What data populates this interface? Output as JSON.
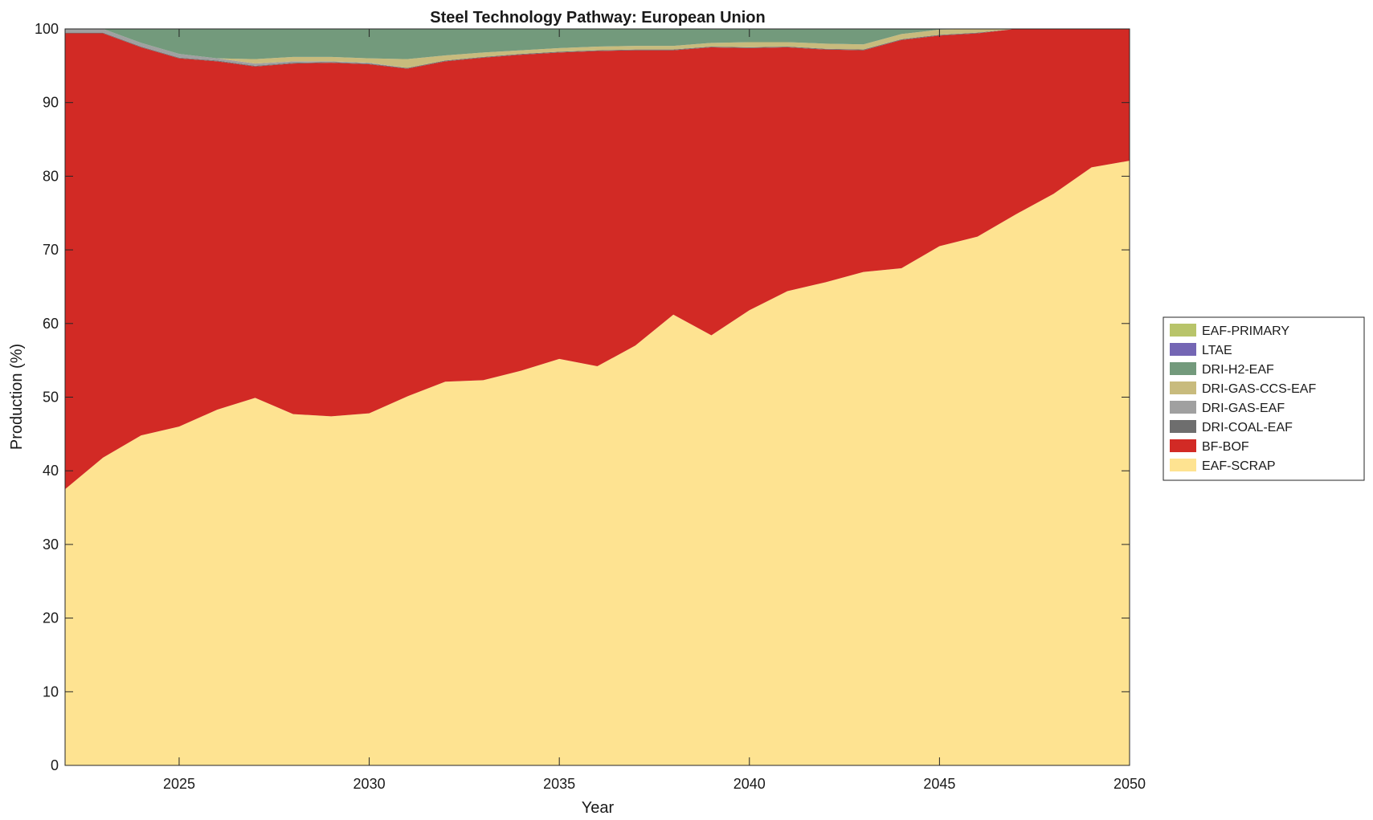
{
  "chart_data": {
    "type": "area",
    "stacked": true,
    "title": "Steel Technology Pathway: European Union",
    "xlabel": "Year",
    "ylabel": "Production (%)",
    "xlim": [
      2022,
      2050
    ],
    "ylim": [
      0,
      100
    ],
    "xticks": [
      2025,
      2030,
      2035,
      2040,
      2045,
      2050
    ],
    "yticks": [
      0,
      10,
      20,
      30,
      40,
      50,
      60,
      70,
      80,
      90,
      100
    ],
    "grid": false,
    "legend_position": "right",
    "x": [
      2022,
      2023,
      2024,
      2025,
      2026,
      2027,
      2028,
      2029,
      2030,
      2031,
      2032,
      2033,
      2034,
      2035,
      2036,
      2037,
      2038,
      2039,
      2040,
      2041,
      2042,
      2043,
      2044,
      2045,
      2046,
      2047,
      2048,
      2049,
      2050
    ],
    "series": [
      {
        "name": "EAF-SCRAP",
        "color": "#fee391",
        "values": [
          37.5,
          41.8,
          44.8,
          46.0,
          48.3,
          49.9,
          47.7,
          47.4,
          47.8,
          50.1,
          52.1,
          52.3,
          53.6,
          55.2,
          54.2,
          57.0,
          61.2,
          58.4,
          61.8,
          64.4,
          65.6,
          67.0,
          67.5,
          70.5,
          71.8,
          74.8,
          77.6,
          81.2,
          82.1
        ]
      },
      {
        "name": "BF-BOF",
        "color": "#d22a25",
        "values": [
          61.9,
          57.6,
          52.7,
          50.0,
          47.3,
          45.0,
          47.6,
          48.0,
          47.4,
          44.5,
          43.5,
          43.8,
          42.9,
          41.6,
          42.8,
          40.1,
          35.9,
          39.1,
          35.6,
          33.1,
          31.6,
          30.1,
          31.0,
          28.6,
          27.6,
          25.2,
          22.4,
          18.8,
          17.9
        ]
      },
      {
        "name": "DRI-COAL-EAF",
        "color": "#6e6e6e",
        "values": [
          0.1,
          0.1,
          0.1,
          0.1,
          0.1,
          0.1,
          0.1,
          0.1,
          0.1,
          0.1,
          0.1,
          0.1,
          0.1,
          0.1,
          0.1,
          0.1,
          0.1,
          0.1,
          0.1,
          0.1,
          0.1,
          0.1,
          0.1,
          0.1,
          0.1,
          0.0,
          0.0,
          0.0,
          0.0
        ]
      },
      {
        "name": "DRI-GAS-EAF",
        "color": "#a0a0a0",
        "values": [
          0.5,
          0.5,
          0.5,
          0.5,
          0.3,
          0.3,
          0.2,
          0.1,
          0.1,
          0.0,
          0.0,
          0.0,
          0.0,
          0.0,
          0.0,
          0.0,
          0.0,
          0.0,
          0.0,
          0.0,
          0.0,
          0.0,
          0.0,
          0.0,
          0.0,
          0.0,
          0.0,
          0.0,
          0.0
        ]
      },
      {
        "name": "DRI-GAS-CCS-EAF",
        "color": "#c8bb7d",
        "values": [
          0.0,
          0.0,
          0.0,
          0.0,
          0.0,
          0.6,
          0.6,
          0.6,
          0.6,
          1.2,
          0.7,
          0.6,
          0.5,
          0.5,
          0.5,
          0.5,
          0.5,
          0.5,
          0.7,
          0.6,
          0.7,
          0.7,
          0.7,
          0.7,
          0.5,
          0.0,
          0.0,
          0.0,
          0.0
        ]
      },
      {
        "name": "DRI-H2-EAF",
        "color": "#739a7c",
        "values": [
          0.0,
          0.0,
          1.9,
          3.4,
          4.0,
          4.1,
          3.8,
          3.8,
          4.0,
          4.1,
          3.6,
          3.2,
          2.9,
          2.6,
          2.4,
          2.3,
          2.3,
          1.9,
          1.8,
          1.8,
          2.0,
          2.1,
          0.7,
          0.1,
          0.0,
          0.0,
          0.0,
          0.0,
          0.0
        ]
      },
      {
        "name": "LTAE",
        "color": "#7466b4",
        "values": [
          0,
          0,
          0,
          0,
          0,
          0,
          0,
          0,
          0,
          0,
          0,
          0,
          0,
          0,
          0,
          0,
          0,
          0,
          0,
          0,
          0,
          0,
          0,
          0,
          0,
          0,
          0,
          0,
          0
        ]
      },
      {
        "name": "EAF-PRIMARY",
        "color": "#b8c46a",
        "values": [
          0,
          0,
          0,
          0,
          0,
          0,
          0,
          0,
          0,
          0,
          0,
          0,
          0,
          0,
          0,
          0,
          0,
          0,
          0,
          0,
          0,
          0,
          0,
          0,
          0,
          0,
          0,
          0,
          0
        ]
      }
    ]
  }
}
